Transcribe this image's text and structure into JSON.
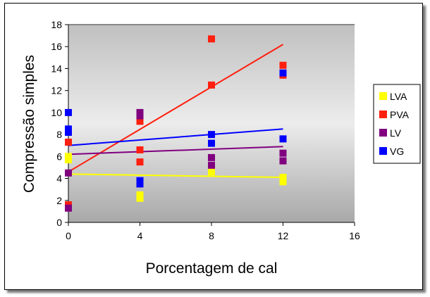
{
  "chart_data": {
    "type": "scatter",
    "xlabel": "Porcentagem de cal",
    "ylabel": "Compressão simples",
    "xlim": [
      0,
      16
    ],
    "ylim": [
      0,
      18
    ],
    "xticks": [
      "0",
      "4",
      "8",
      "12",
      "16"
    ],
    "yticks": [
      "0",
      "2",
      "4",
      "6",
      "8",
      "10",
      "12",
      "14",
      "16",
      "18"
    ],
    "legend_position": "right",
    "series": [
      {
        "name": "LVA",
        "color": "#ffff00",
        "x": [
          0,
          0,
          4,
          4,
          8,
          12,
          12
        ],
        "y": [
          6.0,
          5.7,
          2.5,
          2.2,
          4.6,
          4.1,
          3.7
        ],
        "trend": [
          4.4,
          4.1
        ]
      },
      {
        "name": "PVA",
        "color": "#ff2010",
        "x": [
          0,
          0,
          4,
          4,
          4,
          8,
          8,
          12,
          12
        ],
        "y": [
          7.3,
          1.6,
          9.2,
          6.6,
          5.5,
          16.7,
          12.5,
          14.3,
          13.4
        ],
        "trend": [
          4.6,
          16.2
        ]
      },
      {
        "name": "LV",
        "color": "#800080",
        "x": [
          0,
          0,
          4,
          4,
          8,
          8,
          12,
          12
        ],
        "y": [
          4.5,
          1.3,
          10.0,
          9.7,
          5.9,
          5.2,
          6.3,
          5.6
        ],
        "trend": [
          6.2,
          6.9
        ]
      },
      {
        "name": "VG",
        "color": "#0000ff",
        "x": [
          0,
          0,
          0,
          4,
          4,
          8,
          8,
          12,
          12
        ],
        "y": [
          10.0,
          8.5,
          8.2,
          3.8,
          3.5,
          8.0,
          7.2,
          13.6,
          7.6
        ],
        "trend": [
          7.0,
          8.5
        ]
      }
    ],
    "trend_x": [
      0,
      12
    ]
  }
}
